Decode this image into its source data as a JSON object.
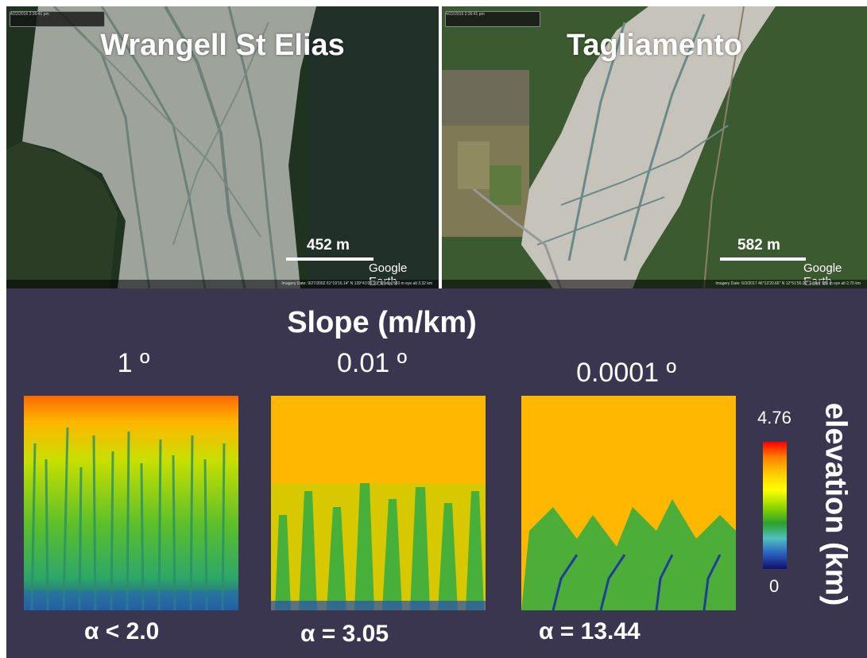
{
  "photos": [
    {
      "title": "Wrangell St Elias",
      "scale": "452 m",
      "logo": "Google Earth",
      "imagery": "Imagery Date: 9/27/2002   61°19'16.14\" N  139°41'00.90\" W  elev 583 m   eye alt 3.32 km"
    },
    {
      "title": "Tagliamento",
      "scale": "582 m",
      "logo": "Google Earth",
      "imagery": "Imagery Date: 6/3/2017   46°13'20.66\" N  12°51'56.06\" E  elev 186 m   eye alt 2.70 km"
    }
  ],
  "timebars": [
    "4/22/2016  2:36:41 pm",
    "4/22/2016  2:36:41 pm"
  ],
  "slope_title": "Slope (m/km)",
  "panels": [
    {
      "angle": "1 º",
      "alpha": "α <  2.0"
    },
    {
      "angle": "0.01 º",
      "alpha": "α = 3.05"
    },
    {
      "angle": "0.0001 º",
      "alpha": "α = 13.44"
    }
  ],
  "colorbar": {
    "max": "4.76",
    "min": "0",
    "label": "elevation (km)"
  }
}
